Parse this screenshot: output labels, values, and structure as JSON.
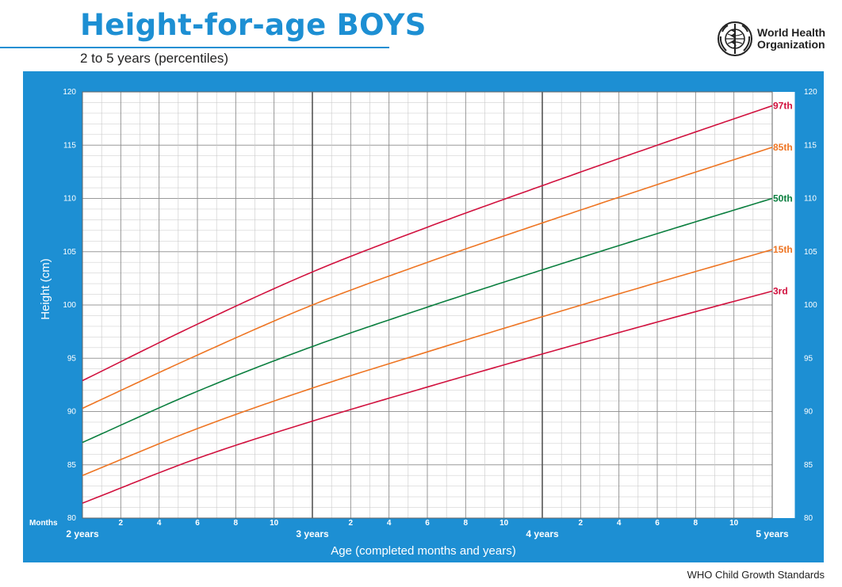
{
  "header": {
    "title": "Height-for-age BOYS",
    "subtitle": "2 to 5 years (percentiles)",
    "org_line1": "World Health",
    "org_line2": "Organization",
    "logo_icon": "who-emblem-icon"
  },
  "footer": {
    "text": "WHO Child Growth Standards"
  },
  "colors": {
    "panel_blue": "#1d8fd3",
    "p97": "#d1113e",
    "p85": "#ee7523",
    "p50": "#0b7f3f",
    "p15": "#ee7523",
    "p3": "#d1113e"
  },
  "chart_data": {
    "type": "line",
    "title": "Height-for-age BOYS",
    "subtitle": "2 to 5 years (percentiles)",
    "xlabel": "Age (completed months and years)",
    "ylabel": "Height (cm)",
    "x_unit_label": "Months",
    "xlim": [
      24,
      60
    ],
    "ylim": [
      80,
      120
    ],
    "y_ticks": [
      80,
      85,
      90,
      95,
      100,
      105,
      110,
      115,
      120
    ],
    "month_tick_labels": [
      "2",
      "4",
      "6",
      "8",
      "10"
    ],
    "year_labels": [
      {
        "x": 24,
        "label": "2 years"
      },
      {
        "x": 36,
        "label": "3 years"
      },
      {
        "x": 48,
        "label": "4 years"
      },
      {
        "x": 60,
        "label": "5 years"
      }
    ],
    "grid": true,
    "legend": "right end labels",
    "x": [
      24,
      30,
      36,
      42,
      48,
      54,
      60
    ],
    "series": [
      {
        "name": "97th",
        "values": [
          92.9,
          98.2,
          103.1,
          107.3,
          111.2,
          115.0,
          118.7
        ]
      },
      {
        "name": "85th",
        "values": [
          90.3,
          95.3,
          100.0,
          104.0,
          107.7,
          111.3,
          114.8
        ]
      },
      {
        "name": "50th",
        "values": [
          87.1,
          91.9,
          96.1,
          99.8,
          103.3,
          106.7,
          110.0
        ]
      },
      {
        "name": "15th",
        "values": [
          84.0,
          88.4,
          92.2,
          95.6,
          98.9,
          102.1,
          105.2
        ]
      },
      {
        "name": "3rd",
        "values": [
          81.4,
          85.6,
          89.1,
          92.3,
          95.4,
          98.4,
          101.3
        ]
      }
    ]
  }
}
